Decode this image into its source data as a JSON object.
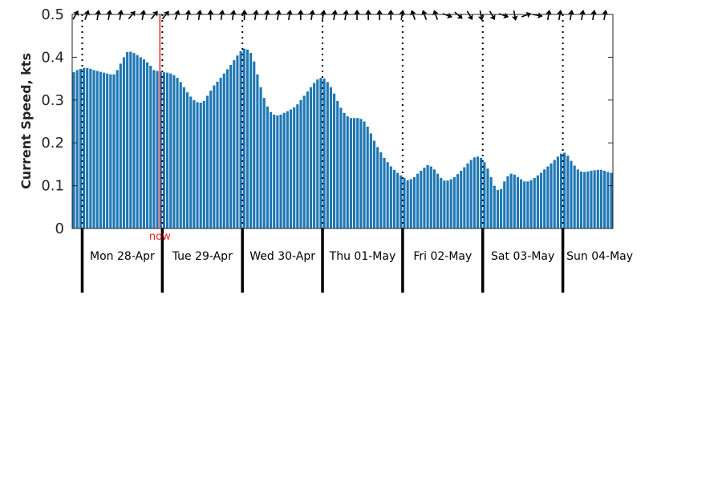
{
  "chart_data": {
    "type": "bar",
    "ylabel": "Current Speed, kts",
    "ylim": [
      0,
      0.5
    ],
    "yticks": [
      "0",
      "0.1",
      "0.2",
      "0.3",
      "0.4",
      "0.5"
    ],
    "bar_color": "#1f77b4",
    "now_color": "#e8262b",
    "now_label": "now",
    "now_hour": 27,
    "x_unit": "hours from 27-Apr 21:00",
    "days": [
      {
        "label": "Mon 28-Apr",
        "start_hour": 3
      },
      {
        "label": "Tue 29-Apr",
        "start_hour": 27
      },
      {
        "label": "Wed 30-Apr",
        "start_hour": 51
      },
      {
        "label": "Thu 01-May",
        "start_hour": 75
      },
      {
        "label": "Fri 02-May",
        "start_hour": 99
      },
      {
        "label": "Sat 03-May",
        "start_hour": 123
      },
      {
        "label": "Sun 04-May",
        "start_hour": 147
      }
    ],
    "values": [
      0.365,
      0.37,
      0.373,
      0.375,
      0.375,
      0.373,
      0.37,
      0.368,
      0.366,
      0.364,
      0.362,
      0.36,
      0.36,
      0.37,
      0.385,
      0.4,
      0.412,
      0.413,
      0.41,
      0.405,
      0.4,
      0.395,
      0.388,
      0.38,
      0.37,
      0.368,
      0.366,
      0.365,
      0.364,
      0.362,
      0.358,
      0.352,
      0.342,
      0.33,
      0.318,
      0.308,
      0.3,
      0.295,
      0.294,
      0.298,
      0.31,
      0.322,
      0.334,
      0.343,
      0.352,
      0.362,
      0.372,
      0.382,
      0.393,
      0.404,
      0.414,
      0.42,
      0.418,
      0.41,
      0.39,
      0.36,
      0.33,
      0.305,
      0.285,
      0.272,
      0.266,
      0.264,
      0.266,
      0.27,
      0.274,
      0.278,
      0.283,
      0.29,
      0.3,
      0.31,
      0.32,
      0.33,
      0.34,
      0.348,
      0.352,
      0.35,
      0.342,
      0.33,
      0.315,
      0.298,
      0.282,
      0.27,
      0.262,
      0.258,
      0.258,
      0.258,
      0.256,
      0.25,
      0.238,
      0.222,
      0.205,
      0.19,
      0.178,
      0.165,
      0.155,
      0.145,
      0.137,
      0.13,
      0.124,
      0.118,
      0.113,
      0.115,
      0.12,
      0.128,
      0.135,
      0.142,
      0.148,
      0.145,
      0.138,
      0.128,
      0.118,
      0.112,
      0.112,
      0.115,
      0.12,
      0.127,
      0.135,
      0.143,
      0.152,
      0.16,
      0.166,
      0.168,
      0.165,
      0.155,
      0.14,
      0.12,
      0.1,
      0.09,
      0.092,
      0.11,
      0.122,
      0.128,
      0.126,
      0.12,
      0.115,
      0.11,
      0.11,
      0.113,
      0.118,
      0.124,
      0.13,
      0.138,
      0.145,
      0.152,
      0.16,
      0.168,
      0.175,
      0.177,
      0.17,
      0.158,
      0.147,
      0.138,
      0.133,
      0.132,
      0.133,
      0.135,
      0.136,
      0.137,
      0.137,
      0.135,
      0.132,
      0.13
    ],
    "direction_arrows_deg": [
      60,
      70,
      80,
      80,
      80,
      50,
      80,
      50,
      50,
      70,
      80,
      80,
      90,
      80,
      80,
      90,
      80,
      80,
      80,
      80,
      90,
      80,
      80,
      80,
      80,
      90,
      90,
      90,
      90,
      80,
      110,
      110,
      110,
      -20,
      -40,
      -60,
      -80,
      -60,
      -20,
      -80,
      20,
      -10,
      80,
      80,
      80,
      80,
      80,
      80
    ]
  }
}
